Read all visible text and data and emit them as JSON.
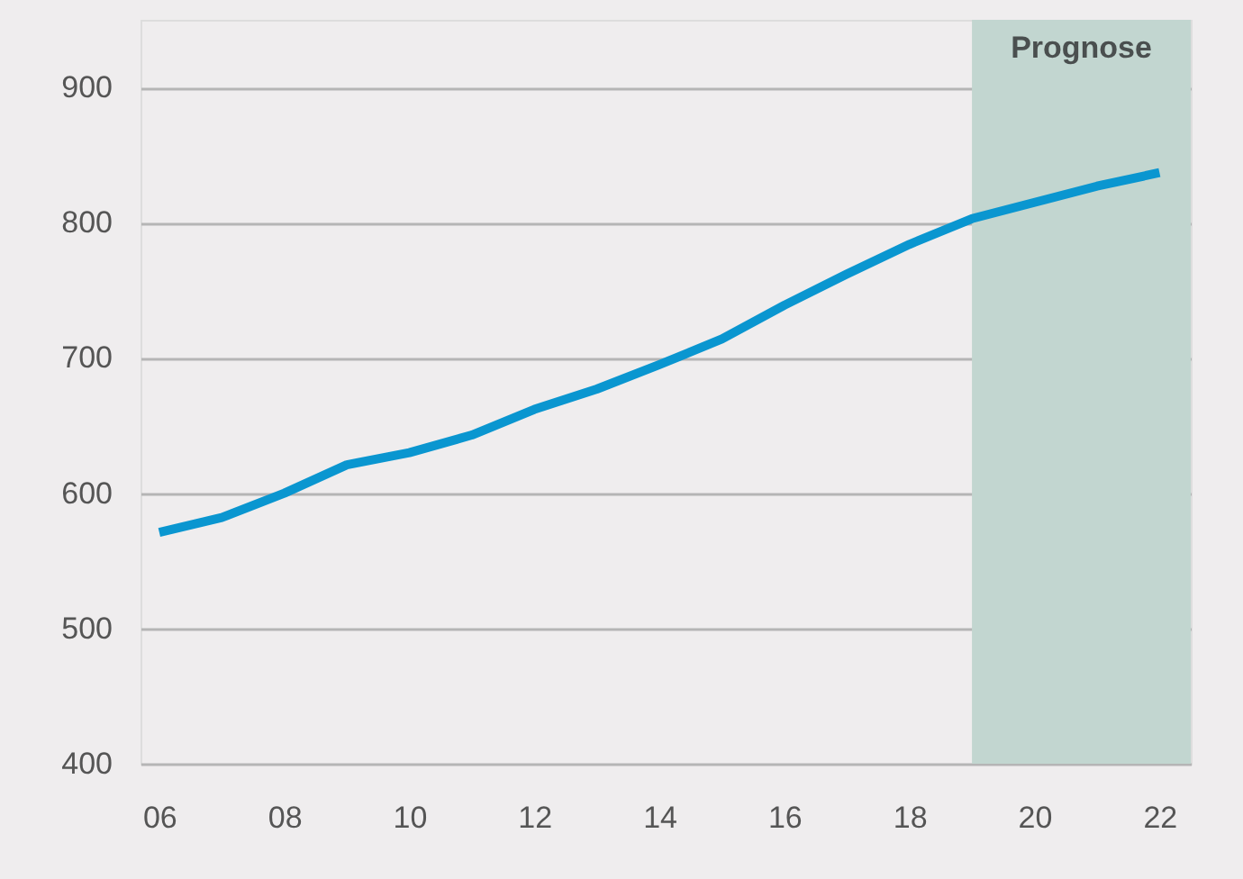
{
  "chart_data": {
    "type": "line",
    "x": [
      2006,
      2007,
      2008,
      2009,
      2010,
      2011,
      2012,
      2013,
      2014,
      2015,
      2016,
      2017,
      2018,
      2019,
      2020,
      2021,
      2022
    ],
    "series": [
      {
        "color": "#0a96d0",
        "values": [
          571,
          582,
          600,
          621,
          630,
          643,
          662,
          677,
          695,
          714,
          739,
          762,
          784,
          803,
          815,
          827,
          837
        ]
      }
    ],
    "xlim": [
      2005.7,
      2022.5
    ],
    "xticks": [
      {
        "value": 2006,
        "label": "06"
      },
      {
        "value": 2008,
        "label": "08"
      },
      {
        "value": 2010,
        "label": "10"
      },
      {
        "value": 2012,
        "label": "12"
      },
      {
        "value": 2014,
        "label": "14"
      },
      {
        "value": 2016,
        "label": "16"
      },
      {
        "value": 2018,
        "label": "18"
      },
      {
        "value": 2020,
        "label": "20"
      },
      {
        "value": 2022,
        "label": "22"
      }
    ],
    "ylim": [
      400,
      950
    ],
    "yticks": [
      400,
      500,
      600,
      700,
      800,
      900
    ],
    "grid": "y",
    "marker": "none",
    "line_style": "solid",
    "bands": [
      {
        "axis": "x",
        "from": 2019,
        "to": 2022.5,
        "label": "Prognose",
        "color": "#c2d6d0"
      }
    ]
  }
}
